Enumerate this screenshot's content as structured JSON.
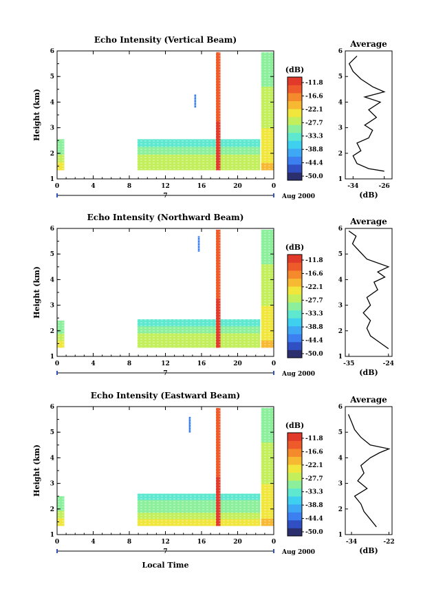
{
  "colors": {
    "scale": [
      "#2b2f6e",
      "#2f4fc2",
      "#3b7ff0",
      "#3ea8f5",
      "#3fd0f0",
      "#5fe8d0",
      "#8cef9c",
      "#c3ef5c",
      "#f0e63c",
      "#f7b832",
      "#f58a2c",
      "#ee5a2a",
      "#e23a2a"
    ],
    "line": "#000000"
  },
  "labels": {
    "height": "Height (km)",
    "avg_unit": "(dB)",
    "cb_unit": "(dB)",
    "avg_title": "Average",
    "date": "Aug 2000",
    "day": "7",
    "xlabel": "Local Time"
  },
  "colorbar_ticks": [
    "-11.8",
    "-16.6",
    "-22.1",
    "-27.7",
    "-33.3",
    "-38.8",
    "-44.4",
    "-50.0"
  ],
  "chart_data": [
    {
      "type": "heatmap",
      "title": "Echo Intensity (Vertical Beam)",
      "xticks": [
        "0",
        "4",
        "8",
        "12",
        "16",
        "20",
        "0"
      ],
      "yticks": [
        "1",
        "2",
        "3",
        "4",
        "5",
        "6"
      ],
      "xlim": [
        0,
        24
      ],
      "ylim": [
        1,
        6
      ],
      "blocks": [
        {
          "x": [
            0,
            0.8
          ],
          "y": [
            1.35,
            2.55
          ],
          "v": 0.55
        },
        {
          "x": [
            8.9,
            22.5
          ],
          "y": [
            1.35,
            2.55
          ],
          "v": 0.5
        },
        {
          "x": [
            22.6,
            24
          ],
          "y": [
            1.35,
            5.95
          ],
          "v": 0.55
        },
        {
          "x": [
            17.6,
            18.1
          ],
          "y": [
            1.35,
            5.95
          ],
          "v": 0.9
        },
        {
          "x": [
            15.2,
            15.4
          ],
          "y": [
            3.8,
            4.3
          ],
          "v": 0.15
        }
      ],
      "avg": {
        "xticks": [
          "-34",
          "-26"
        ],
        "xlim": [
          -36,
          -24
        ],
        "h": [
          1.3,
          1.4,
          1.6,
          1.9,
          2.1,
          2.4,
          2.6,
          2.9,
          3.1,
          3.4,
          3.7,
          4.0,
          4.2,
          4.4,
          4.6,
          4.9,
          5.2,
          5.5,
          5.8
        ],
        "v": [
          -26,
          -30,
          -33,
          -34,
          -32,
          -33,
          -30,
          -29,
          -31,
          -28,
          -30,
          -27,
          -31,
          -26,
          -29,
          -32,
          -34,
          -35,
          -33
        ]
      }
    },
    {
      "type": "heatmap",
      "title": "Echo Intensity (Northward Beam)",
      "xticks": [
        "0",
        "4",
        "8",
        "12",
        "16",
        "20",
        "0"
      ],
      "yticks": [
        "1",
        "2",
        "3",
        "4",
        "5",
        "6"
      ],
      "xlim": [
        0,
        24
      ],
      "ylim": [
        1,
        6
      ],
      "blocks": [
        {
          "x": [
            0,
            0.8
          ],
          "y": [
            1.35,
            2.4
          ],
          "v": 0.55
        },
        {
          "x": [
            8.9,
            22.5
          ],
          "y": [
            1.35,
            2.45
          ],
          "v": 0.5
        },
        {
          "x": [
            22.6,
            24
          ],
          "y": [
            1.35,
            5.95
          ],
          "v": 0.55
        },
        {
          "x": [
            17.6,
            18.1
          ],
          "y": [
            1.35,
            5.95
          ],
          "v": 0.9
        },
        {
          "x": [
            15.6,
            15.8
          ],
          "y": [
            5.1,
            5.7
          ],
          "v": 0.15
        }
      ],
      "avg": {
        "xticks": [
          "-35",
          "-24"
        ],
        "xlim": [
          -36,
          -23
        ],
        "h": [
          1.3,
          1.5,
          1.8,
          2.1,
          2.4,
          2.7,
          3.0,
          3.3,
          3.6,
          3.9,
          4.1,
          4.3,
          4.5,
          4.8,
          5.1,
          5.4,
          5.7,
          5.9
        ],
        "v": [
          -24,
          -26,
          -29,
          -30,
          -29,
          -31,
          -29,
          -30,
          -27,
          -28,
          -25,
          -27,
          -24,
          -30,
          -32,
          -34,
          -33,
          -35
        ]
      }
    },
    {
      "type": "heatmap",
      "title": "Echo Intensity (Eastward Beam)",
      "xticks": [
        "0",
        "4",
        "8",
        "12",
        "16",
        "20",
        "0"
      ],
      "yticks": [
        "1",
        "2",
        "3",
        "4",
        "5",
        "6"
      ],
      "xlim": [
        0,
        24
      ],
      "ylim": [
        1,
        6
      ],
      "blocks": [
        {
          "x": [
            0,
            0.8
          ],
          "y": [
            1.35,
            2.5
          ],
          "v": 0.55
        },
        {
          "x": [
            8.9,
            22.5
          ],
          "y": [
            1.35,
            2.6
          ],
          "v": 0.5
        },
        {
          "x": [
            22.6,
            24
          ],
          "y": [
            1.35,
            5.95
          ],
          "v": 0.55
        },
        {
          "x": [
            17.6,
            18.1
          ],
          "y": [
            1.35,
            5.95
          ],
          "v": 0.9
        },
        {
          "x": [
            14.6,
            14.8
          ],
          "y": [
            5.0,
            5.6
          ],
          "v": 0.15
        }
      ],
      "avg": {
        "xticks": [
          "-34",
          "-22"
        ],
        "xlim": [
          -36,
          -21
        ],
        "h": [
          1.3,
          1.6,
          1.9,
          2.2,
          2.5,
          2.8,
          3.1,
          3.4,
          3.7,
          4.0,
          4.2,
          4.35,
          4.5,
          4.8,
          5.1,
          5.4,
          5.7
        ],
        "v": [
          -26,
          -28,
          -30,
          -31,
          -33,
          -29,
          -32,
          -30,
          -31,
          -28,
          -25,
          -22,
          -28,
          -31,
          -33,
          -34,
          -35
        ]
      }
    }
  ]
}
